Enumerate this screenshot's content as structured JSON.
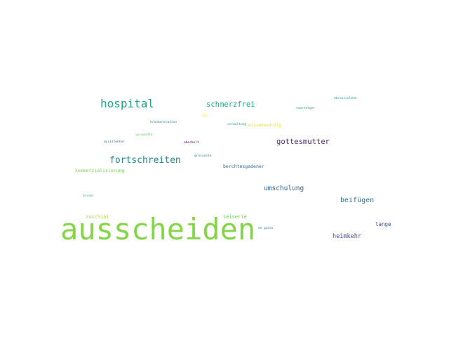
{
  "words": [
    {
      "text": "ausscheiden",
      "color": "#86d549"
    },
    {
      "text": "hospital",
      "color": "#20a486"
    },
    {
      "text": "fortschreiten",
      "color": "#24868e"
    },
    {
      "text": "schmerzfrei",
      "color": "#22a785"
    },
    {
      "text": "gottesmutter",
      "color": "#482878"
    },
    {
      "text": "umschulung",
      "color": "#33638d"
    },
    {
      "text": "beifügen",
      "color": "#2c728e"
    },
    {
      "text": "heimkehr",
      "color": "#3e4a89"
    },
    {
      "text": "lange",
      "color": "#3b528b"
    },
    {
      "text": "berchtesgadener",
      "color": "#31688e"
    },
    {
      "text": "kommerzialisierung",
      "color": "#7ad151"
    },
    {
      "text": "zucchini",
      "color": "#a5db36"
    },
    {
      "text": "seiserie",
      "color": "#6ece58"
    },
    {
      "text": "wissenswürdig",
      "color": "#e5e419"
    },
    {
      "text": "abrasiculmen",
      "color": "#1f9e89"
    },
    {
      "text": "zuarteiger",
      "color": "#218f8d"
    },
    {
      "text": "krankenstation",
      "color": "#26828e"
    },
    {
      "text": "bur",
      "color": "#fde725"
    },
    {
      "text": "verwaltung",
      "color": "#1fa187"
    },
    {
      "text": "verwandte",
      "color": "#5ec962"
    },
    {
      "text": "assistenter",
      "color": "#3b528b"
    },
    {
      "text": "aberbelt",
      "color": "#440154"
    },
    {
      "text": "grosseste",
      "color": "#2a788e"
    },
    {
      "text": "bruder",
      "color": "#35b779"
    },
    {
      "text": "en gusos",
      "color": "#2a788e"
    }
  ]
}
